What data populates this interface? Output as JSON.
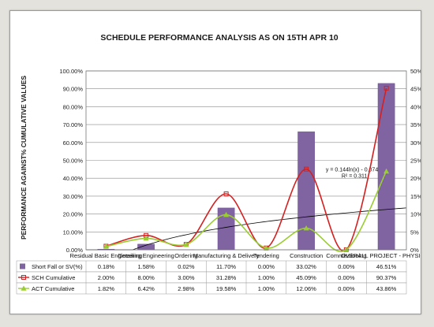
{
  "chart_data": {
    "type": "bar",
    "title": "SCHEDULE PERFORMANCE ANALYSIS AS ON  15TH APR 10",
    "ylabel": "PERFORMANCE AGAINST% CUMULATIVE VALUES",
    "ylim": [
      0,
      100
    ],
    "y2lim": [
      0,
      50
    ],
    "y_ticks": [
      "0.00%",
      "10.00%",
      "20.00%",
      "30.00%",
      "40.00%",
      "50.00%",
      "60.00%",
      "70.00%",
      "80.00%",
      "90.00%",
      "100.00%"
    ],
    "y2_ticks": [
      "0%",
      "5%",
      "10%",
      "15%",
      "20%",
      "25%",
      "30%",
      "35%",
      "40%",
      "45%",
      "50%"
    ],
    "categories": [
      "Residual Basic Engineering",
      "Detailing Engineering",
      "Ordering",
      "Manufacturing & Delivery",
      "Tendering",
      "Construction",
      "Commissioning",
      "OVERALL PROJECT - PHYSICAL"
    ],
    "grid": true,
    "series": [
      {
        "name": "Short Fall or SV(%)",
        "type": "bar",
        "axis": "secondary",
        "color": "#8064a2",
        "values": [
          0.18,
          1.58,
          0.02,
          11.7,
          0.0,
          33.02,
          0.0,
          46.51
        ],
        "labels": [
          "0.18%",
          "1.58%",
          "0.02%",
          "11.70%",
          "0.00%",
          "33.02%",
          "0.00%",
          "46.51%"
        ]
      },
      {
        "name": "SCH Cumulative",
        "type": "line",
        "axis": "primary",
        "color": "#d42020",
        "marker": "square",
        "values": [
          2.0,
          8.0,
          3.0,
          31.28,
          1.0,
          45.09,
          0.0,
          90.37
        ],
        "labels": [
          "2.00%",
          "8.00%",
          "3.00%",
          "31.28%",
          "1.00%",
          "45.09%",
          "0.00%",
          "90.37%"
        ]
      },
      {
        "name": "ACT Cumulative",
        "type": "line",
        "axis": "primary",
        "color": "#9acd32",
        "marker": "triangle",
        "values": [
          1.82,
          6.42,
          2.98,
          19.58,
          1.0,
          12.06,
          0.0,
          43.86
        ],
        "labels": [
          "1.82%",
          "6.42%",
          "2.98%",
          "19.58%",
          "1.00%",
          "12.06%",
          "0.00%",
          "43.86%"
        ]
      }
    ],
    "trendline": {
      "color": "#000000",
      "equation": "y = 0.144ln(x) - 0.074",
      "r2": "R² = 0.311"
    }
  }
}
